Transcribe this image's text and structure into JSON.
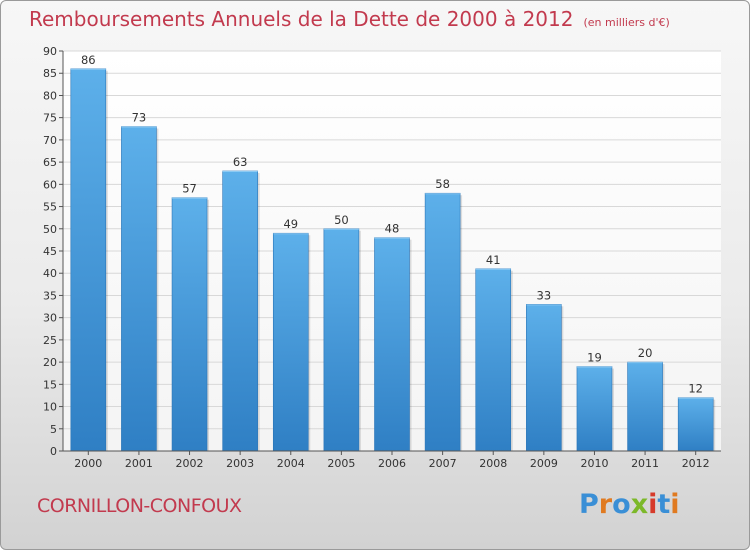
{
  "title": "Remboursements Annuels de la Dette de 2000 à 2012",
  "unit_note": "(en milliers d'€)",
  "commune": "CORNILLON-CONFOUX",
  "logo": {
    "letters": [
      "P",
      "r",
      "o",
      "x",
      "i",
      "t",
      "i"
    ],
    "colors": [
      "#3a8fd6",
      "#e07a20",
      "#3a8fd6",
      "#7cb829",
      "#d63a2a",
      "#3a8fd6",
      "#e07a20"
    ]
  },
  "colors": {
    "title": "#c23a4e",
    "bar_light": "#5db0ea",
    "bar_dark": "#2f7fc4",
    "grid": "#d8d8d8"
  },
  "chart_data": {
    "type": "bar",
    "categories": [
      "2000",
      "2001",
      "2002",
      "2003",
      "2004",
      "2005",
      "2006",
      "2007",
      "2008",
      "2009",
      "2010",
      "2011",
      "2012"
    ],
    "values": [
      86,
      73,
      57,
      63,
      49,
      50,
      48,
      58,
      41,
      33,
      19,
      20,
      12
    ],
    "ylim": [
      0,
      90
    ],
    "yticks": [
      0,
      5,
      10,
      15,
      20,
      25,
      30,
      35,
      40,
      45,
      50,
      55,
      60,
      65,
      70,
      75,
      80,
      85,
      90
    ],
    "grid": true,
    "data_labels": true
  }
}
